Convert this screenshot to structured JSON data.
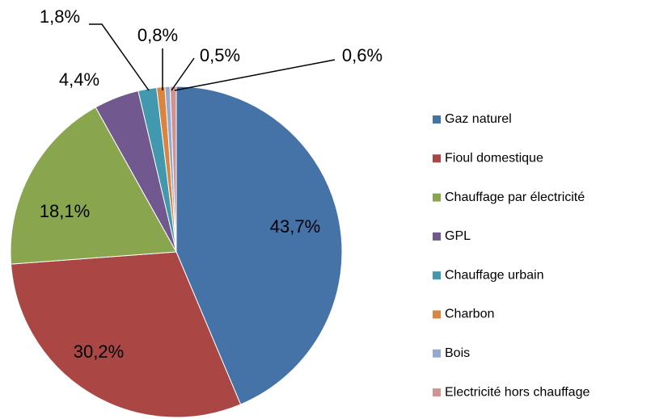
{
  "chart_data": {
    "type": "pie",
    "categories": [
      "Gaz naturel",
      "Fioul domestique",
      "Chauffage par électricité",
      "GPL",
      "Chauffage urbain",
      "Charbon",
      "Bois",
      "Electricité hors chauffage"
    ],
    "values": [
      43.7,
      30.2,
      18.1,
      4.4,
      1.8,
      0.8,
      0.5,
      0.6
    ],
    "value_labels": [
      "43,7%",
      "30,2%",
      "18,1%",
      "4,4%",
      "1,8%",
      "0,8%",
      "0,5%",
      "0,6%"
    ],
    "colors": [
      "#4572a7",
      "#aa4643",
      "#89a54e",
      "#71588f",
      "#4198af",
      "#db843d",
      "#93a9cf",
      "#d19392"
    ],
    "legend": "right"
  }
}
